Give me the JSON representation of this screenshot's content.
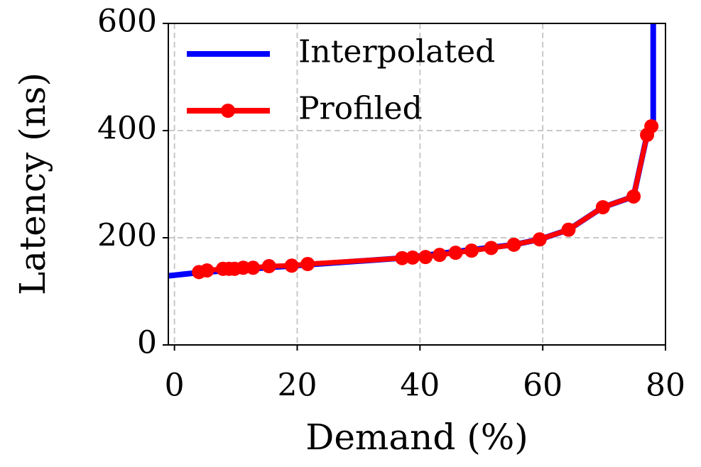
{
  "chart_data": {
    "type": "line",
    "xlabel": "Demand (%)",
    "ylabel": "Latency (ns)",
    "xlim": [
      -1,
      80
    ],
    "ylim": [
      0,
      600
    ],
    "xticks": [
      0,
      20,
      40,
      60,
      80
    ],
    "yticks": [
      0,
      200,
      400,
      600
    ],
    "grid": true,
    "legend": "upper left",
    "series": [
      {
        "name": "Interpolated",
        "color": "#0000ff",
        "marker": false,
        "x": [
          -1,
          4,
          22,
          37,
          55.3,
          59.5,
          64.2,
          69.8,
          74.8,
          77.0,
          77.7,
          78.0,
          78.0
        ],
        "values": [
          129,
          135,
          150,
          162,
          187,
          197,
          215,
          257,
          277,
          392,
          408,
          420,
          600
        ]
      },
      {
        "name": "Profiled",
        "color": "#ff0000",
        "marker": true,
        "x": [
          4.0,
          5.3,
          7.9,
          8.9,
          9.8,
          11.2,
          12.8,
          15.4,
          19.1,
          21.7,
          37.1,
          38.8,
          40.9,
          43.2,
          45.8,
          48.4,
          51.6,
          55.3,
          59.5,
          64.2,
          69.8,
          74.8,
          77.0,
          77.7
        ],
        "values": [
          136,
          139,
          142,
          142,
          142,
          144,
          144,
          147,
          148,
          151,
          162,
          163,
          164,
          168,
          172,
          176,
          181,
          187,
          197,
          215,
          257,
          277,
          392,
          408
        ]
      }
    ]
  }
}
